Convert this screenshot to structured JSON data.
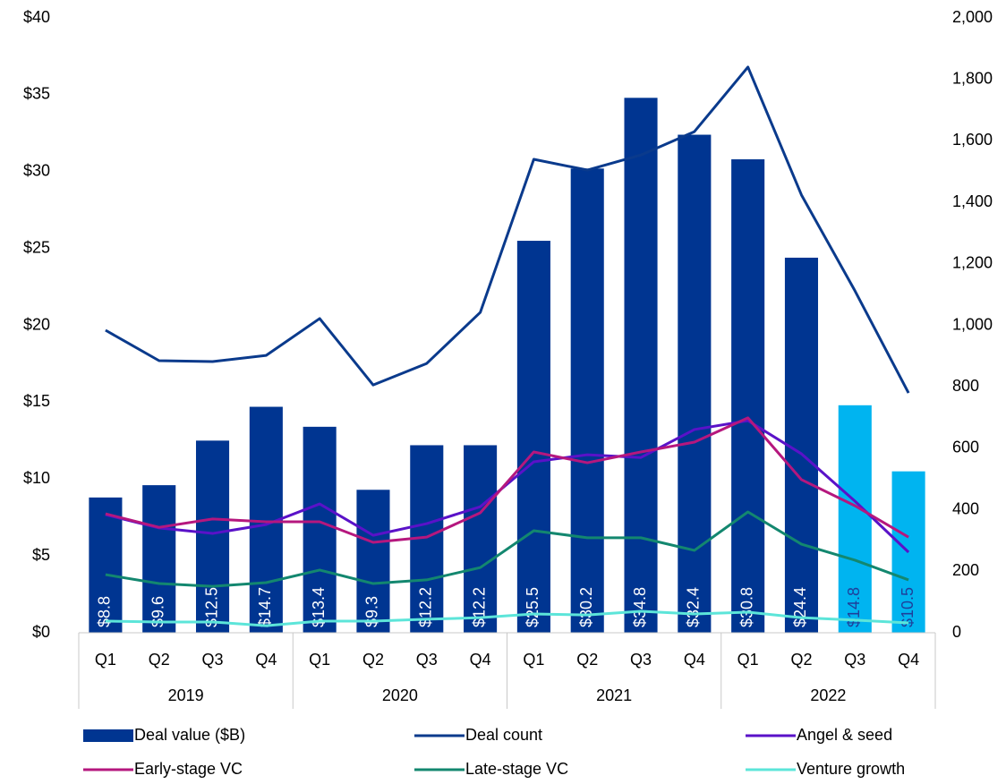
{
  "chart_data": {
    "type": "bar",
    "categories": [
      "Q1",
      "Q2",
      "Q3",
      "Q4",
      "Q1",
      "Q2",
      "Q3",
      "Q4",
      "Q1",
      "Q2",
      "Q3",
      "Q4",
      "Q1",
      "Q2",
      "Q3",
      "Q4"
    ],
    "groups": [
      "2019",
      "2020",
      "2021",
      "2022"
    ],
    "ylim": [
      0,
      40
    ],
    "yticks": [
      {
        "value": 0,
        "label": "$0"
      },
      {
        "value": 5,
        "label": "$5"
      },
      {
        "value": 10,
        "label": "$10"
      },
      {
        "value": 15,
        "label": "$15"
      },
      {
        "value": 20,
        "label": "$20"
      },
      {
        "value": 25,
        "label": "$25"
      },
      {
        "value": 30,
        "label": "$30"
      },
      {
        "value": 35,
        "label": "$35"
      },
      {
        "value": 40,
        "label": "$40"
      }
    ],
    "y2lim": [
      0,
      2000
    ],
    "y2ticks": [
      0,
      200,
      400,
      600,
      800,
      {
        "value": 1000,
        "label": "1,000"
      },
      {
        "value": 1200,
        "label": "1,200"
      },
      {
        "value": 1400,
        "label": "1,400"
      },
      {
        "value": 1600,
        "label": "1,600"
      },
      {
        "value": 1800,
        "label": "1,800"
      },
      {
        "value": 2000,
        "label": "2,000"
      }
    ],
    "series": [
      {
        "name": "Deal value ($B)",
        "type": "bar",
        "color": "#003591",
        "colors": [
          "#003591",
          "#003591",
          "#003591",
          "#003591",
          "#003591",
          "#003591",
          "#003591",
          "#003591",
          "#003591",
          "#003591",
          "#003591",
          "#003591",
          "#003591",
          "#003591",
          "#00b4f0",
          "#00b4f0"
        ],
        "label_colors": [
          "#ffffff",
          "#ffffff",
          "#ffffff",
          "#ffffff",
          "#ffffff",
          "#ffffff",
          "#ffffff",
          "#ffffff",
          "#ffffff",
          "#ffffff",
          "#ffffff",
          "#ffffff",
          "#ffffff",
          "#ffffff",
          "#1f3f9a",
          "#1f3f9a"
        ],
        "values": [
          8.8,
          9.6,
          12.5,
          14.7,
          13.4,
          9.3,
          12.2,
          12.2,
          25.5,
          30.2,
          34.8,
          32.4,
          30.8,
          24.4,
          14.8,
          10.5
        ],
        "value_labels": [
          "$8.8",
          "$9.6",
          "$12.5",
          "$14.7",
          "$13.4",
          "$9.3",
          "$12.2",
          "$12.2",
          "$25.5",
          "$30.2",
          "$34.8",
          "$32.4",
          "$30.8",
          "$24.4",
          "$14.8",
          "$10.5"
        ]
      },
      {
        "name": "Deal count",
        "type": "line",
        "axis": "y2",
        "color": "#0a3a8c",
        "values": [
          984,
          885,
          882,
          902,
          1022,
          806,
          876,
          1042,
          1540,
          1505,
          1554,
          1630,
          1840,
          1424,
          1112,
          780
        ]
      },
      {
        "name": "Angel & seed",
        "type": "line",
        "axis": "y2",
        "color": "#5a12c8",
        "values": [
          384,
          341,
          323,
          352,
          419,
          317,
          355,
          410,
          556,
          579,
          570,
          661,
          690,
          582,
          428,
          262
        ]
      },
      {
        "name": "Early-stage VC",
        "type": "line",
        "axis": "y2",
        "color": "#b5177e",
        "values": [
          387,
          343,
          370,
          361,
          361,
          294,
          311,
          390,
          588,
          553,
          588,
          620,
          699,
          498,
          413,
          311
        ]
      },
      {
        "name": "Late-stage VC",
        "type": "line",
        "axis": "y2",
        "color": "#13876f",
        "values": [
          189,
          160,
          151,
          163,
          204,
          160,
          172,
          212,
          332,
          309,
          309,
          268,
          393,
          288,
          236,
          172
        ]
      },
      {
        "name": "Venture growth",
        "type": "line",
        "axis": "y2",
        "color": "#5ce5d9",
        "values": [
          38,
          35,
          35,
          23,
          38,
          38,
          44,
          49,
          61,
          58,
          70,
          61,
          67,
          49,
          41,
          32
        ]
      }
    ]
  }
}
